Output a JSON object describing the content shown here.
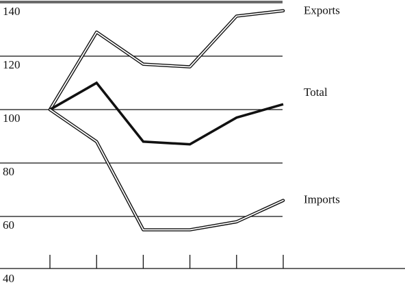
{
  "chart_data": {
    "type": "line",
    "title": "",
    "xlabel": "",
    "ylabel": "",
    "x": [
      1,
      2,
      3,
      4,
      5,
      6
    ],
    "ylim": [
      40,
      145
    ],
    "y_ticks": [
      40,
      60,
      80,
      100,
      120,
      140
    ],
    "y_tick_labels": [
      "40",
      "60",
      "80",
      "100",
      "120",
      "140"
    ],
    "grid": true,
    "series": [
      {
        "name": "Exports",
        "values": [
          100,
          129,
          117,
          116,
          135,
          137
        ],
        "style": "double"
      },
      {
        "name": "Total",
        "values": [
          100,
          110,
          88,
          87,
          97,
          102
        ],
        "style": "bold"
      },
      {
        "name": "Imports",
        "values": [
          100,
          88,
          55,
          55,
          58,
          66
        ],
        "style": "double"
      }
    ],
    "colors": {
      "line": "#111111",
      "background": "#ffffff"
    }
  }
}
